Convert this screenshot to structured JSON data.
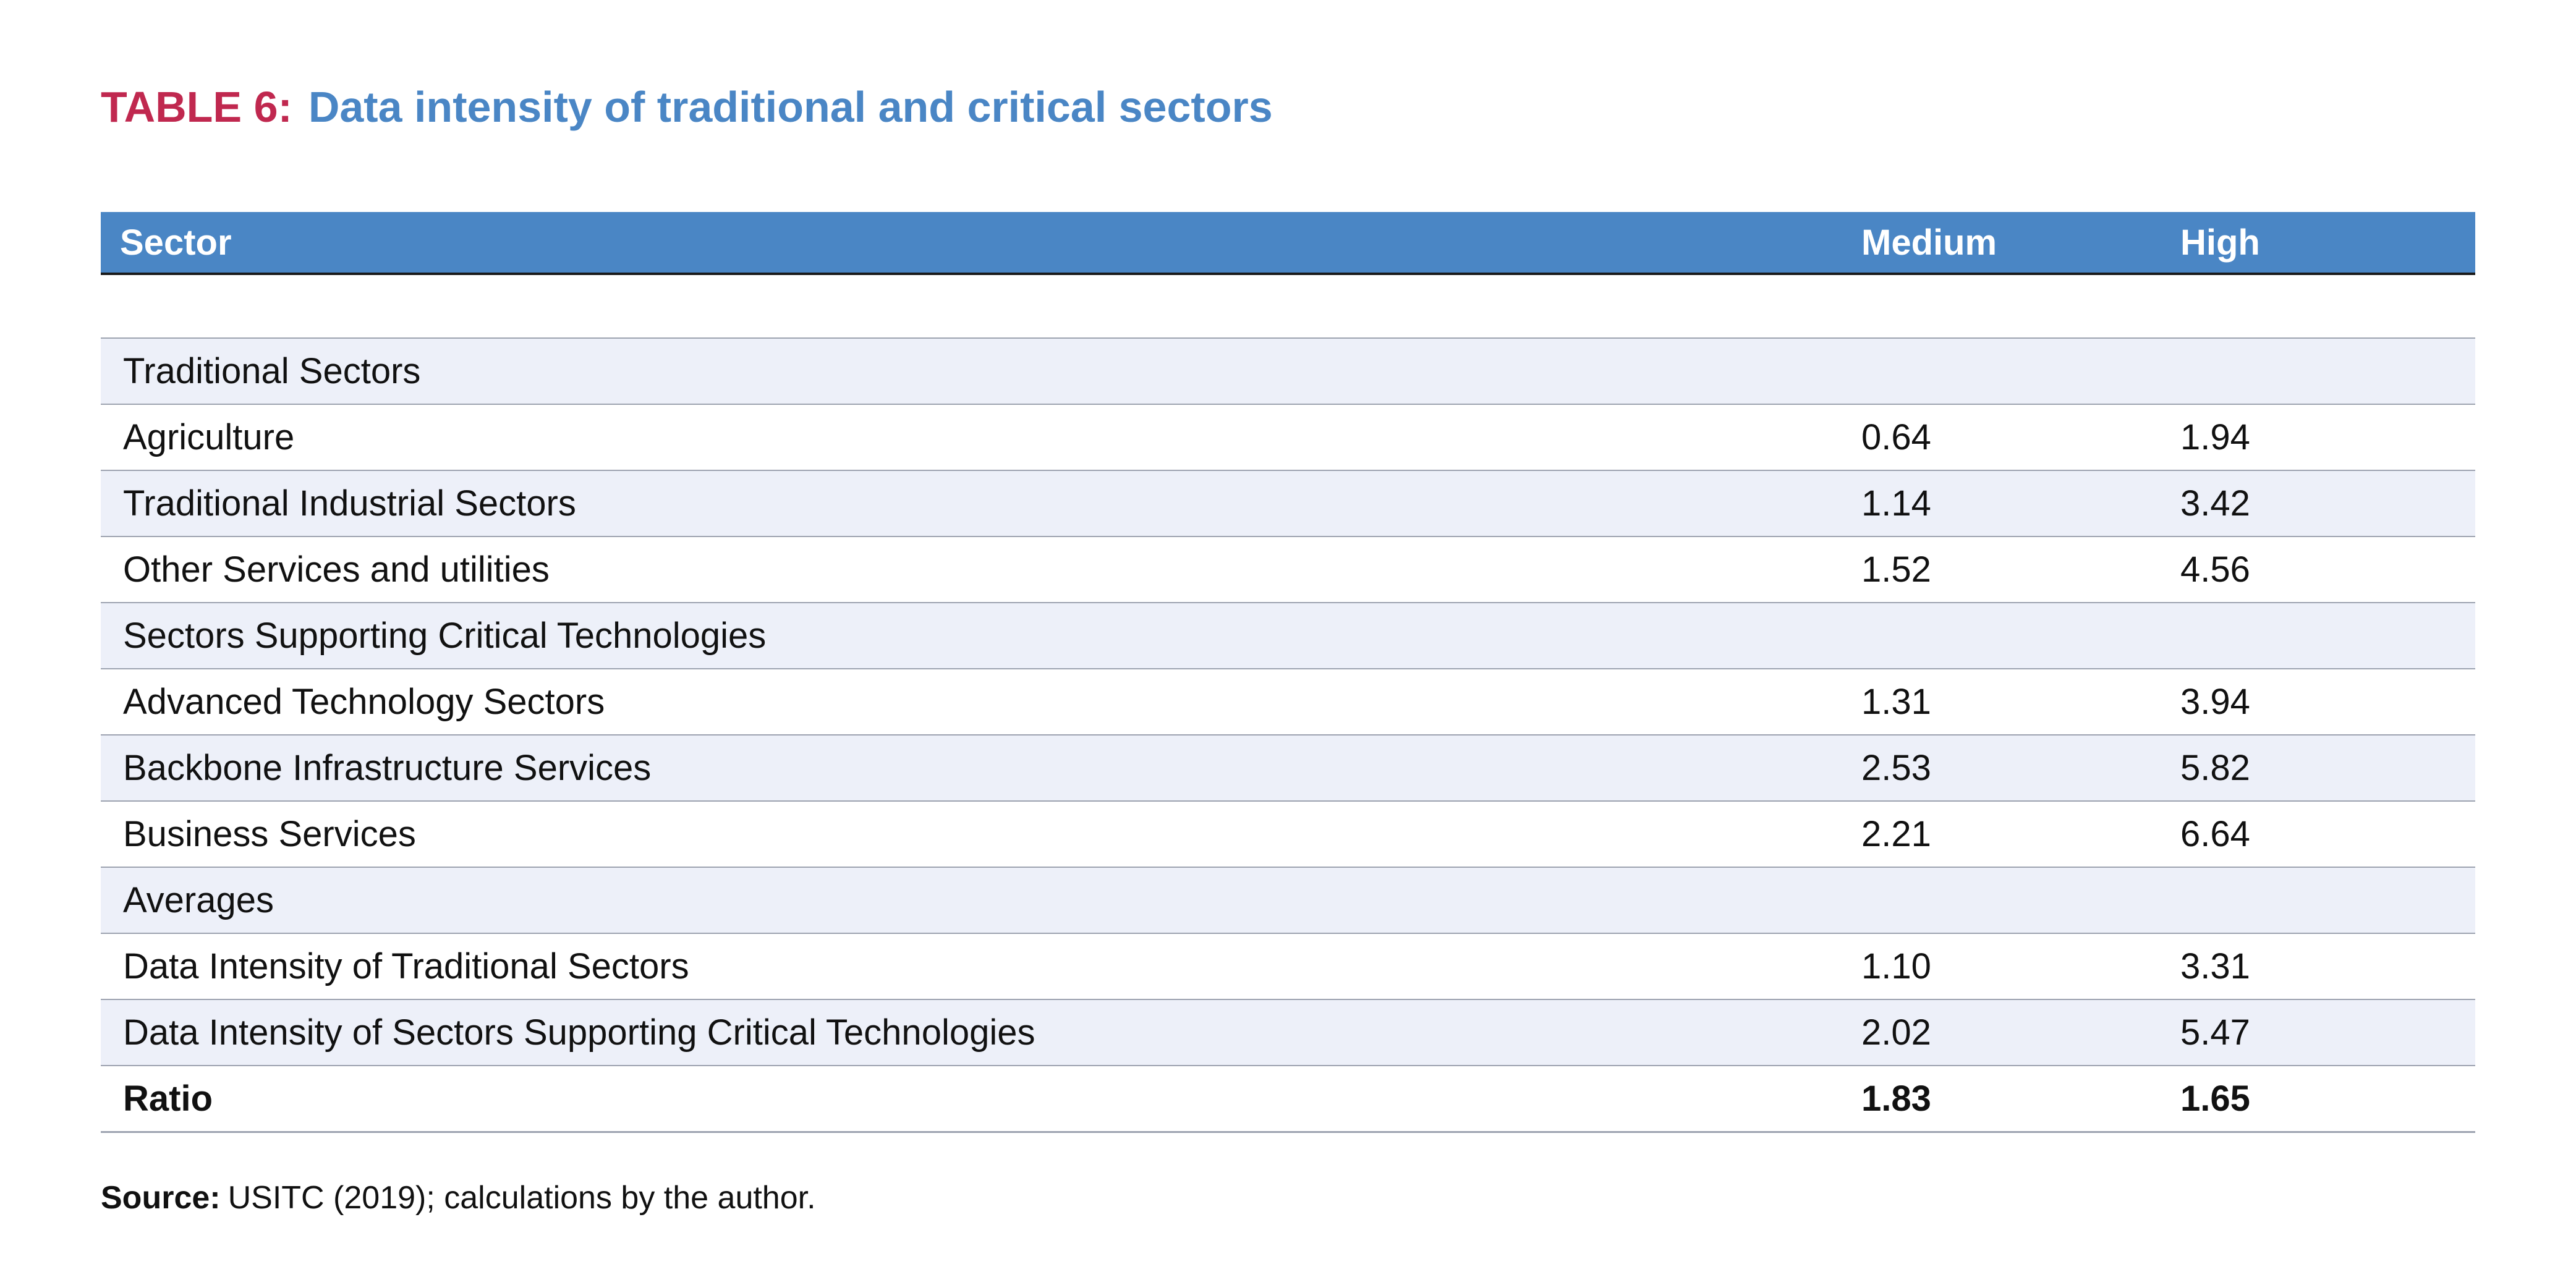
{
  "title": {
    "label": "TABLE 6:",
    "text": "Data intensity of traditional and critical sectors"
  },
  "table": {
    "headers": [
      "Sector",
      "Medium",
      "High"
    ],
    "rows": [
      {
        "sector": "Traditional Sectors",
        "medium": "",
        "high": ""
      },
      {
        "sector": "Agriculture",
        "medium": "0.64",
        "high": "1.94"
      },
      {
        "sector": "Traditional Industrial Sectors",
        "medium": "1.14",
        "high": "3.42"
      },
      {
        "sector": "Other Services and utilities",
        "medium": "1.52",
        "high": "4.56"
      },
      {
        "sector": "Sectors Supporting Critical Technologies",
        "medium": "",
        "high": ""
      },
      {
        "sector": "Advanced Technology Sectors",
        "medium": "1.31",
        "high": "3.94"
      },
      {
        "sector": "Backbone Infrastructure Services",
        "medium": "2.53",
        "high": "5.82"
      },
      {
        "sector": "Business Services",
        "medium": "2.21",
        "high": "6.64"
      },
      {
        "sector": "Averages",
        "medium": "",
        "high": ""
      },
      {
        "sector": "Data Intensity of Traditional Sectors",
        "medium": "1.10",
        "high": "3.31"
      },
      {
        "sector": "Data Intensity of Sectors Supporting Critical Technologies",
        "medium": "2.02",
        "high": "5.47"
      },
      {
        "sector": "Ratio",
        "medium": "1.83",
        "high": "1.65"
      }
    ]
  },
  "source": {
    "label": "Source:",
    "text": "USITC (2019); calculations by the author."
  },
  "colors": {
    "title_label": "#c0284f",
    "title_text": "#4a86c5",
    "header_background": "#4a86c5",
    "row_shade": "#edf0f9"
  }
}
